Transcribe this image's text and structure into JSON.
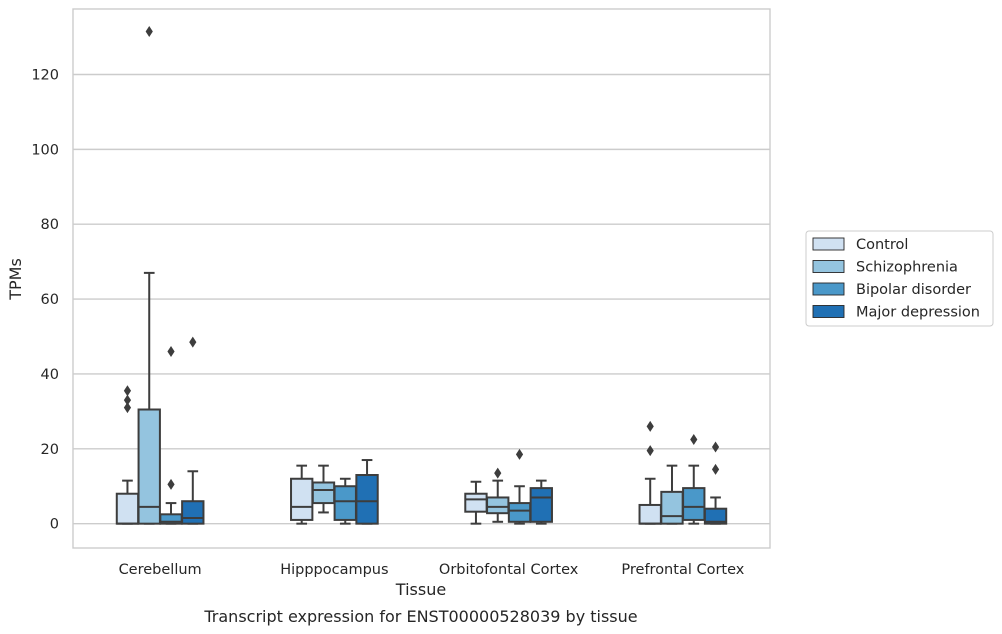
{
  "caption": "Transcript expression for ENST00000528039 by tissue",
  "chart_data": {
    "type": "box",
    "xlabel": "Tissue",
    "ylabel": "TPMs",
    "ylim": [
      -6.5,
      137.5
    ],
    "yticks": [
      0,
      20,
      40,
      60,
      80,
      100,
      120
    ],
    "grid": "horizontal",
    "legend_position": "right",
    "categories": [
      "Cerebellum",
      "Hipppocampus",
      "Orbitofontal Cortex",
      "Prefrontal Cortex"
    ],
    "series": [
      {
        "name": "Control",
        "color": "#d0e1f2",
        "boxes": [
          {
            "whisker_low": 0,
            "q1": 0,
            "median": 0,
            "q3": 8,
            "whisker_high": 11.5,
            "outliers": [
              31,
              33,
              35.5
            ]
          },
          {
            "whisker_low": 0,
            "q1": 1,
            "median": 4.5,
            "q3": 12,
            "whisker_high": 15.5,
            "outliers": []
          },
          {
            "whisker_low": 0,
            "q1": 3.2,
            "median": 6.5,
            "q3": 8,
            "whisker_high": 11.2,
            "outliers": []
          },
          {
            "whisker_low": 0,
            "q1": 0,
            "median": 0,
            "q3": 5,
            "whisker_high": 12,
            "outliers": [
              19.5,
              26
            ]
          }
        ]
      },
      {
        "name": "Schizophrenia",
        "color": "#94c4df",
        "boxes": [
          {
            "whisker_low": 0,
            "q1": 0,
            "median": 4.5,
            "q3": 30.5,
            "whisker_high": 67,
            "outliers": [
              131.5
            ]
          },
          {
            "whisker_low": 3,
            "q1": 5.5,
            "median": 9,
            "q3": 11,
            "whisker_high": 15.5,
            "outliers": []
          },
          {
            "whisker_low": 0.5,
            "q1": 2.8,
            "median": 4.5,
            "q3": 7,
            "whisker_high": 11.5,
            "outliers": [
              13.5
            ]
          },
          {
            "whisker_low": 0,
            "q1": 0,
            "median": 2,
            "q3": 8.5,
            "whisker_high": 15.5,
            "outliers": []
          }
        ]
      },
      {
        "name": "Bipolar disorder",
        "color": "#4a98c9",
        "boxes": [
          {
            "whisker_low": 0,
            "q1": 0,
            "median": 0.5,
            "q3": 2.5,
            "whisker_high": 5.5,
            "outliers": [
              10.5,
              46
            ]
          },
          {
            "whisker_low": 0,
            "q1": 1,
            "median": 6,
            "q3": 10,
            "whisker_high": 12,
            "outliers": []
          },
          {
            "whisker_low": 0,
            "q1": 0.5,
            "median": 3.5,
            "q3": 5.5,
            "whisker_high": 10,
            "outliers": [
              18.5
            ]
          },
          {
            "whisker_low": 0,
            "q1": 1,
            "median": 4.5,
            "q3": 9.5,
            "whisker_high": 15.5,
            "outliers": [
              22.5
            ]
          }
        ]
      },
      {
        "name": "Major depression",
        "color": "#2070b4",
        "boxes": [
          {
            "whisker_low": 0,
            "q1": 0,
            "median": 1.5,
            "q3": 6,
            "whisker_high": 14,
            "outliers": [
              48.5
            ]
          },
          {
            "whisker_low": 0,
            "q1": 0,
            "median": 6,
            "q3": 13,
            "whisker_high": 17,
            "outliers": []
          },
          {
            "whisker_low": 0,
            "q1": 0.5,
            "median": 7,
            "q3": 9.5,
            "whisker_high": 11.5,
            "outliers": []
          },
          {
            "whisker_low": 0,
            "q1": 0,
            "median": 0.5,
            "q3": 4,
            "whisker_high": 7,
            "outliers": [
              14.5,
              20.5
            ]
          }
        ]
      }
    ]
  }
}
